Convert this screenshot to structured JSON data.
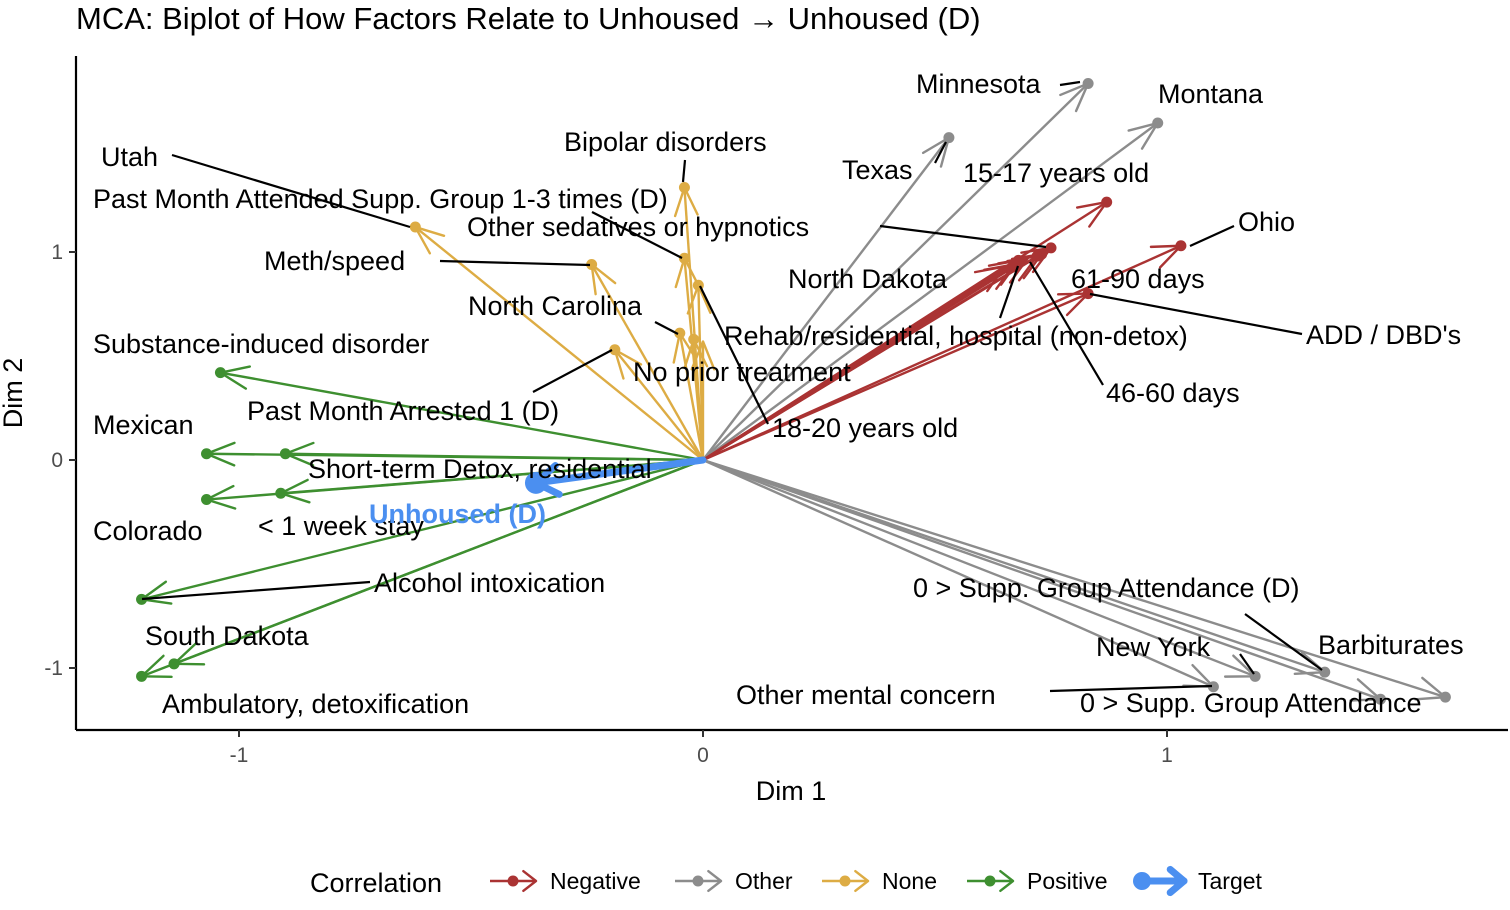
{
  "chart_data": {
    "type": "scatter",
    "title": "MCA: Biplot of How Factors Relate to Unhoused → Unhoused (D)",
    "xlabel": "Dim 1",
    "ylabel": "Dim 2",
    "xlim": [
      -1.35,
      1.73
    ],
    "ylim": [
      -1.3,
      1.95
    ],
    "x_ticks": [
      -1,
      0,
      1
    ],
    "y_ticks": [
      -1,
      0,
      1
    ],
    "x_tick_labels": [
      "-1",
      "0",
      "1"
    ],
    "y_tick_labels": [
      "-1",
      "0",
      "1"
    ],
    "grid": false,
    "legend_title": "Correlation",
    "legend_position": "bottom",
    "legend": [
      {
        "key": "negative",
        "label": "Negative"
      },
      {
        "key": "other",
        "label": "Other"
      },
      {
        "key": "none",
        "label": "None"
      },
      {
        "key": "positive",
        "label": "Positive"
      },
      {
        "key": "target",
        "label": "Target"
      }
    ],
    "colors": {
      "negative": "#aa3333",
      "other": "#8c8c8c",
      "none": "#ddac44",
      "positive": "#3e8f30",
      "target": "#4b8ff0"
    },
    "points": [
      {
        "label": "Minnesota",
        "x": 0.83,
        "y": 1.81,
        "group": "other"
      },
      {
        "label": "Montana",
        "x": 0.98,
        "y": 1.62,
        "group": "other"
      },
      {
        "label": "Texas",
        "x": 0.53,
        "y": 1.55,
        "group": "other"
      },
      {
        "label": "15-17 years old",
        "x": 0.87,
        "y": 1.24,
        "group": "negative"
      },
      {
        "label": "Ohio",
        "x": 1.03,
        "y": 1.03,
        "group": "negative"
      },
      {
        "label": "Other sedatives or hypnotics",
        "x": 0.75,
        "y": 1.02,
        "group": "negative"
      },
      {
        "label": "North Dakota",
        "x": 0.68,
        "y": 0.96,
        "group": "negative"
      },
      {
        "label": "Rehab/residential, hospital (non-detox)",
        "x": 0.67,
        "y": 0.94,
        "group": "negative"
      },
      {
        "label": "46-60 days",
        "x": 0.73,
        "y": 0.99,
        "group": "negative"
      },
      {
        "label": "61-90 days",
        "x": 0.72,
        "y": 0.98,
        "group": "negative"
      },
      {
        "label": "ADD / DBD's",
        "x": 0.83,
        "y": 0.8,
        "group": "negative"
      },
      {
        "label": "Bipolar disorders",
        "x": -0.04,
        "y": 1.31,
        "group": "none"
      },
      {
        "label": "Past Month Attended Supp. Group 1-3 times (D)",
        "x": -0.04,
        "y": 0.97,
        "group": "none"
      },
      {
        "label": "18-20 years old",
        "x": -0.01,
        "y": 0.84,
        "group": "none"
      },
      {
        "label": "Utah",
        "x": -0.62,
        "y": 1.12,
        "group": "none"
      },
      {
        "label": "Meth/speed",
        "x": -0.24,
        "y": 0.94,
        "group": "none"
      },
      {
        "label": "North Carolina",
        "x": -0.05,
        "y": 0.61,
        "group": "none"
      },
      {
        "label": "No prior treatment",
        "x": -0.02,
        "y": 0.58,
        "group": "none"
      },
      {
        "label": "Past Month Arrested 1 (D)",
        "x": -0.19,
        "y": 0.53,
        "group": "none"
      },
      {
        "label": "Substance-induced disorder",
        "x": -1.04,
        "y": 0.42,
        "group": "positive"
      },
      {
        "label": "Mexican",
        "x": -1.07,
        "y": 0.03,
        "group": "positive"
      },
      {
        "label": "Short-term Detox, residential",
        "x": -0.9,
        "y": 0.03,
        "group": "positive"
      },
      {
        "label": "Colorado",
        "x": -1.07,
        "y": -0.19,
        "group": "positive"
      },
      {
        "label": "< 1 week stay",
        "x": -0.91,
        "y": -0.16,
        "group": "positive"
      },
      {
        "label": "Alcohol intoxication",
        "x": -1.21,
        "y": -0.67,
        "group": "positive"
      },
      {
        "label": "South Dakota",
        "x": -1.14,
        "y": -0.98,
        "group": "positive"
      },
      {
        "label": "Ambulatory, detoxification",
        "x": -1.21,
        "y": -1.04,
        "group": "positive"
      },
      {
        "label": "0 > Supp. Group Attendance (D)",
        "x": 1.34,
        "y": -1.02,
        "group": "other"
      },
      {
        "label": "Barbiturates",
        "x": 1.6,
        "y": -1.14,
        "group": "other"
      },
      {
        "label": "New York",
        "x": 1.19,
        "y": -1.04,
        "group": "other"
      },
      {
        "label": "Other mental concern",
        "x": 1.1,
        "y": -1.09,
        "group": "other"
      },
      {
        "label": "0 > Supp. Group Attendance",
        "x": 1.46,
        "y": -1.15,
        "group": "other"
      }
    ],
    "extra_arrows": [
      {
        "x": 0.65,
        "y": 0.93,
        "group": "negative"
      },
      {
        "x": 0.7,
        "y": 0.97,
        "group": "negative"
      },
      {
        "x": 0.0,
        "y": 0.57,
        "group": "none"
      }
    ],
    "target": {
      "label": "Unhoused (D)",
      "x": -0.36,
      "y": -0.11,
      "group": "target"
    }
  }
}
